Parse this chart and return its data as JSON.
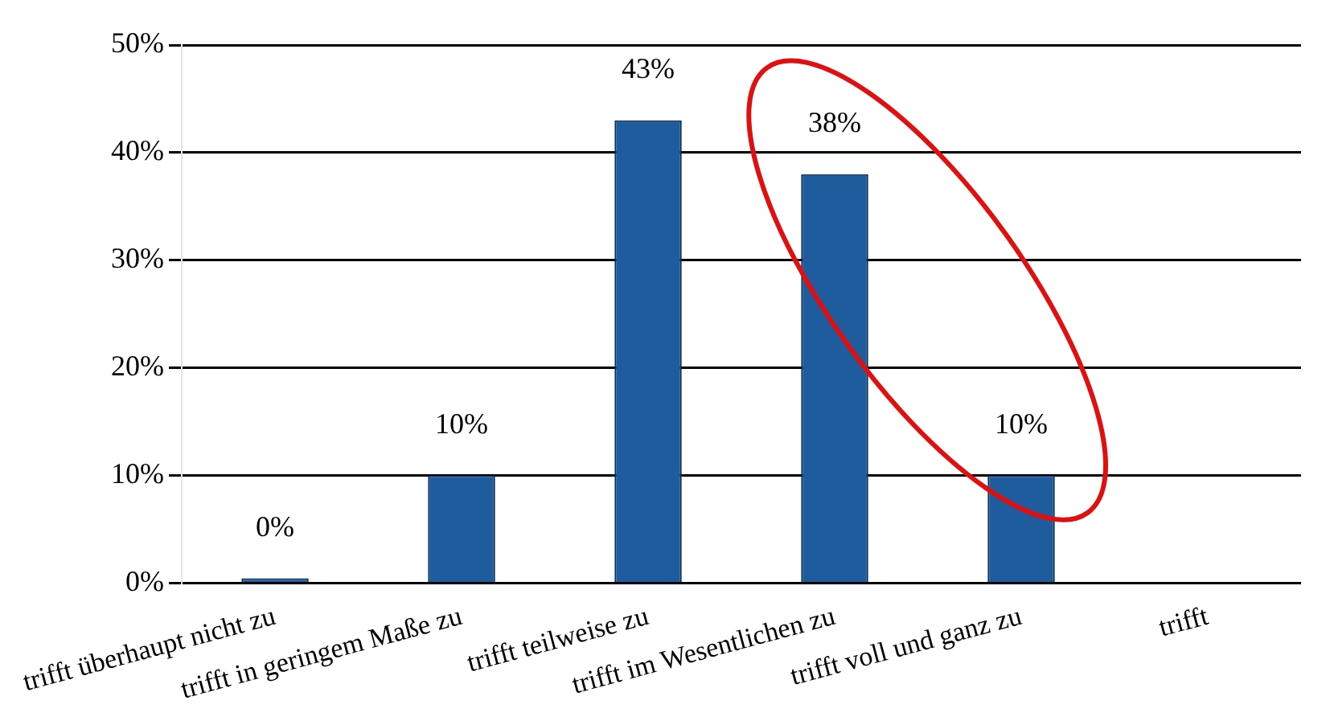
{
  "chart_data": {
    "type": "bar",
    "categories": [
      "trifft überhaupt nicht zu",
      "trifft in geringem Maße zu",
      "trifft teilweise zu",
      "trifft im Wesentlichen zu",
      "trifft voll und ganz zu",
      "trifft"
    ],
    "values": [
      0,
      10,
      43,
      38,
      10,
      null
    ],
    "value_labels": [
      "0%",
      "10%",
      "43%",
      "38%",
      "10%",
      null
    ],
    "color": "#1f5c9e",
    "ylim": [
      0,
      50
    ],
    "yticks": [
      {
        "value": 0,
        "label": "0%"
      },
      {
        "value": 10,
        "label": "10%"
      },
      {
        "value": 20,
        "label": "20%"
      },
      {
        "value": 30,
        "label": "30%"
      },
      {
        "value": 40,
        "label": "40%"
      },
      {
        "value": 50,
        "label": "50%"
      }
    ],
    "grid": "y",
    "legend": false
  }
}
